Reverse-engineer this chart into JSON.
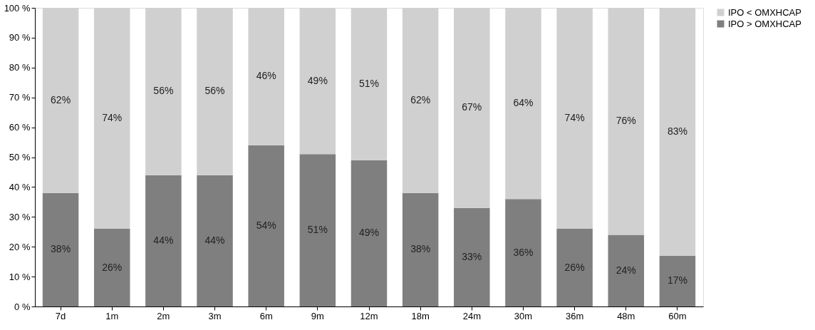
{
  "chart_data": {
    "type": "bar",
    "stacked": true,
    "categories": [
      "7d",
      "1m",
      "2m",
      "3m",
      "6m",
      "9m",
      "12m",
      "18m",
      "24m",
      "30m",
      "36m",
      "48m",
      "60m"
    ],
    "series": [
      {
        "name": "IPO > OMXHCAP",
        "color": "#7f7f7f",
        "values": [
          38,
          26,
          44,
          44,
          54,
          51,
          49,
          38,
          33,
          36,
          26,
          24,
          17
        ],
        "value_labels": [
          "38%",
          "26%",
          "44%",
          "44%",
          "54%",
          "51%",
          "49%",
          "38%",
          "33%",
          "36%",
          "26%",
          "24%",
          "17%"
        ]
      },
      {
        "name": "IPO < OMXHCAP",
        "color": "#d0d0d0",
        "values": [
          62,
          74,
          56,
          56,
          46,
          49,
          51,
          62,
          67,
          64,
          74,
          76,
          83
        ],
        "value_labels": [
          "62%",
          "74%",
          "56%",
          "56%",
          "46%",
          "49%",
          "51%",
          "62%",
          "67%",
          "64%",
          "74%",
          "76%",
          "83%"
        ]
      }
    ],
    "ylim": [
      0,
      100
    ],
    "yticks": [
      {
        "value": 0,
        "label": "0 %"
      },
      {
        "value": 10,
        "label": "10 %"
      },
      {
        "value": 20,
        "label": "20 %"
      },
      {
        "value": 30,
        "label": "30 %"
      },
      {
        "value": 40,
        "label": "40 %"
      },
      {
        "value": 50,
        "label": "50 %"
      },
      {
        "value": 60,
        "label": "60 %"
      },
      {
        "value": 70,
        "label": "70 %"
      },
      {
        "value": 80,
        "label": "80 %"
      },
      {
        "value": 90,
        "label": "90 %"
      },
      {
        "value": 100,
        "label": "100 %"
      }
    ],
    "grid": false,
    "legend": "right"
  }
}
